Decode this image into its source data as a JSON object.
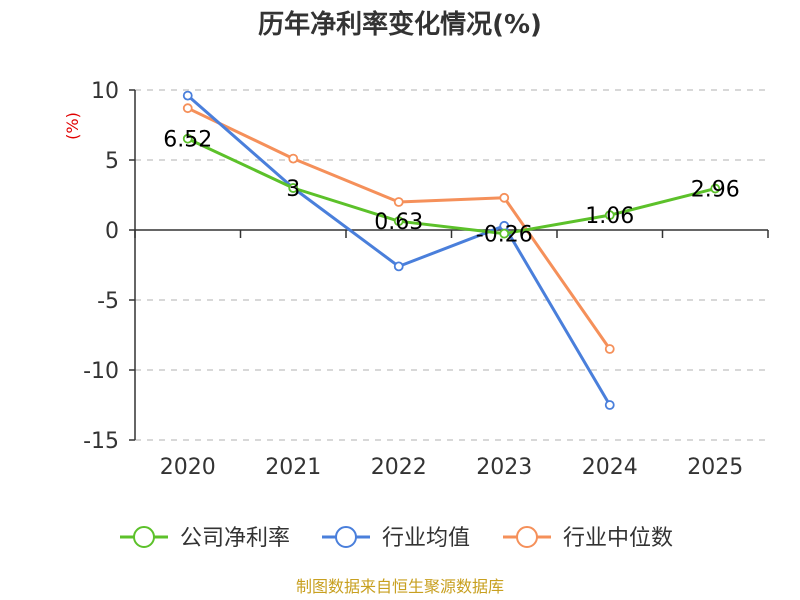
{
  "chart_data": {
    "type": "line",
    "title": "历年净利率变化情况(%)",
    "ylabel": "(%)",
    "categories": [
      "2020",
      "2021",
      "2022",
      "2023",
      "2024",
      "2025"
    ],
    "ylim": [
      -15,
      10
    ],
    "yticks": [
      10,
      5,
      0,
      -5,
      -10,
      -15
    ],
    "grid": true,
    "legend_position": "bottom",
    "series": [
      {
        "name": "公司净利率",
        "color": "#5cc12a",
        "values": [
          6.52,
          3,
          0.63,
          -0.26,
          1.06,
          2.96
        ],
        "labels": [
          "6.52",
          "3",
          "0.63",
          "-0.26",
          "1.06",
          "2.96"
        ]
      },
      {
        "name": "行业均值",
        "color": "#4a7fdb",
        "values": [
          9.6,
          3.0,
          -2.6,
          0.3,
          -12.5,
          null
        ]
      },
      {
        "name": "行业中位数",
        "color": "#f5905a",
        "values": [
          8.7,
          5.1,
          2.0,
          2.3,
          -8.5,
          null
        ]
      }
    ],
    "source": "制图数据来自恒生聚源数据库"
  }
}
